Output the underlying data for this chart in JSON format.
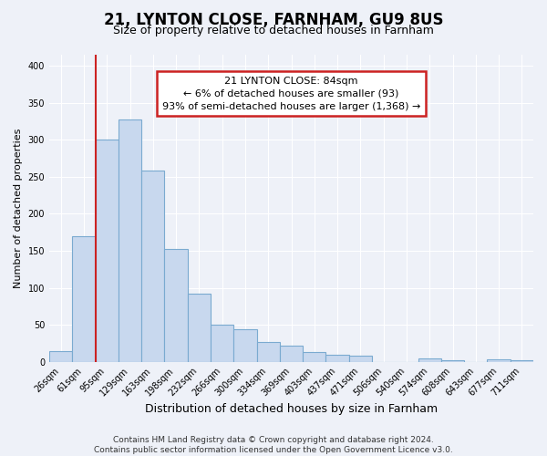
{
  "title": "21, LYNTON CLOSE, FARNHAM, GU9 8US",
  "subtitle": "Size of property relative to detached houses in Farnham",
  "xlabel": "Distribution of detached houses by size in Farnham",
  "ylabel": "Number of detached properties",
  "bar_labels": [
    "26sqm",
    "61sqm",
    "95sqm",
    "129sqm",
    "163sqm",
    "198sqm",
    "232sqm",
    "266sqm",
    "300sqm",
    "334sqm",
    "369sqm",
    "403sqm",
    "437sqm",
    "471sqm",
    "506sqm",
    "540sqm",
    "574sqm",
    "608sqm",
    "643sqm",
    "677sqm",
    "711sqm"
  ],
  "bar_values": [
    15,
    170,
    300,
    328,
    258,
    153,
    92,
    50,
    44,
    27,
    22,
    13,
    10,
    8,
    0,
    0,
    4,
    2,
    0,
    3,
    2
  ],
  "bar_color": "#c8d8ee",
  "bar_edge_color": "#7aaad0",
  "property_line_index": 2,
  "property_label": "21 LYNTON CLOSE: 84sqm",
  "annotation_line1": "← 6% of detached houses are smaller (93)",
  "annotation_line2": "93% of semi-detached houses are larger (1,368) →",
  "annotation_box_facecolor": "#ffffff",
  "annotation_box_edgecolor": "#cc2222",
  "property_line_color": "#cc2222",
  "ylim_max": 415,
  "yticks": [
    0,
    50,
    100,
    150,
    200,
    250,
    300,
    350,
    400
  ],
  "footer_line1": "Contains HM Land Registry data © Crown copyright and database right 2024.",
  "footer_line2": "Contains public sector information licensed under the Open Government Licence v3.0.",
  "background_color": "#eef1f8",
  "grid_color": "#ffffff",
  "title_fontsize": 12,
  "subtitle_fontsize": 9,
  "xlabel_fontsize": 9,
  "ylabel_fontsize": 8,
  "tick_fontsize": 7,
  "annotation_fontsize": 8,
  "footer_fontsize": 6.5
}
